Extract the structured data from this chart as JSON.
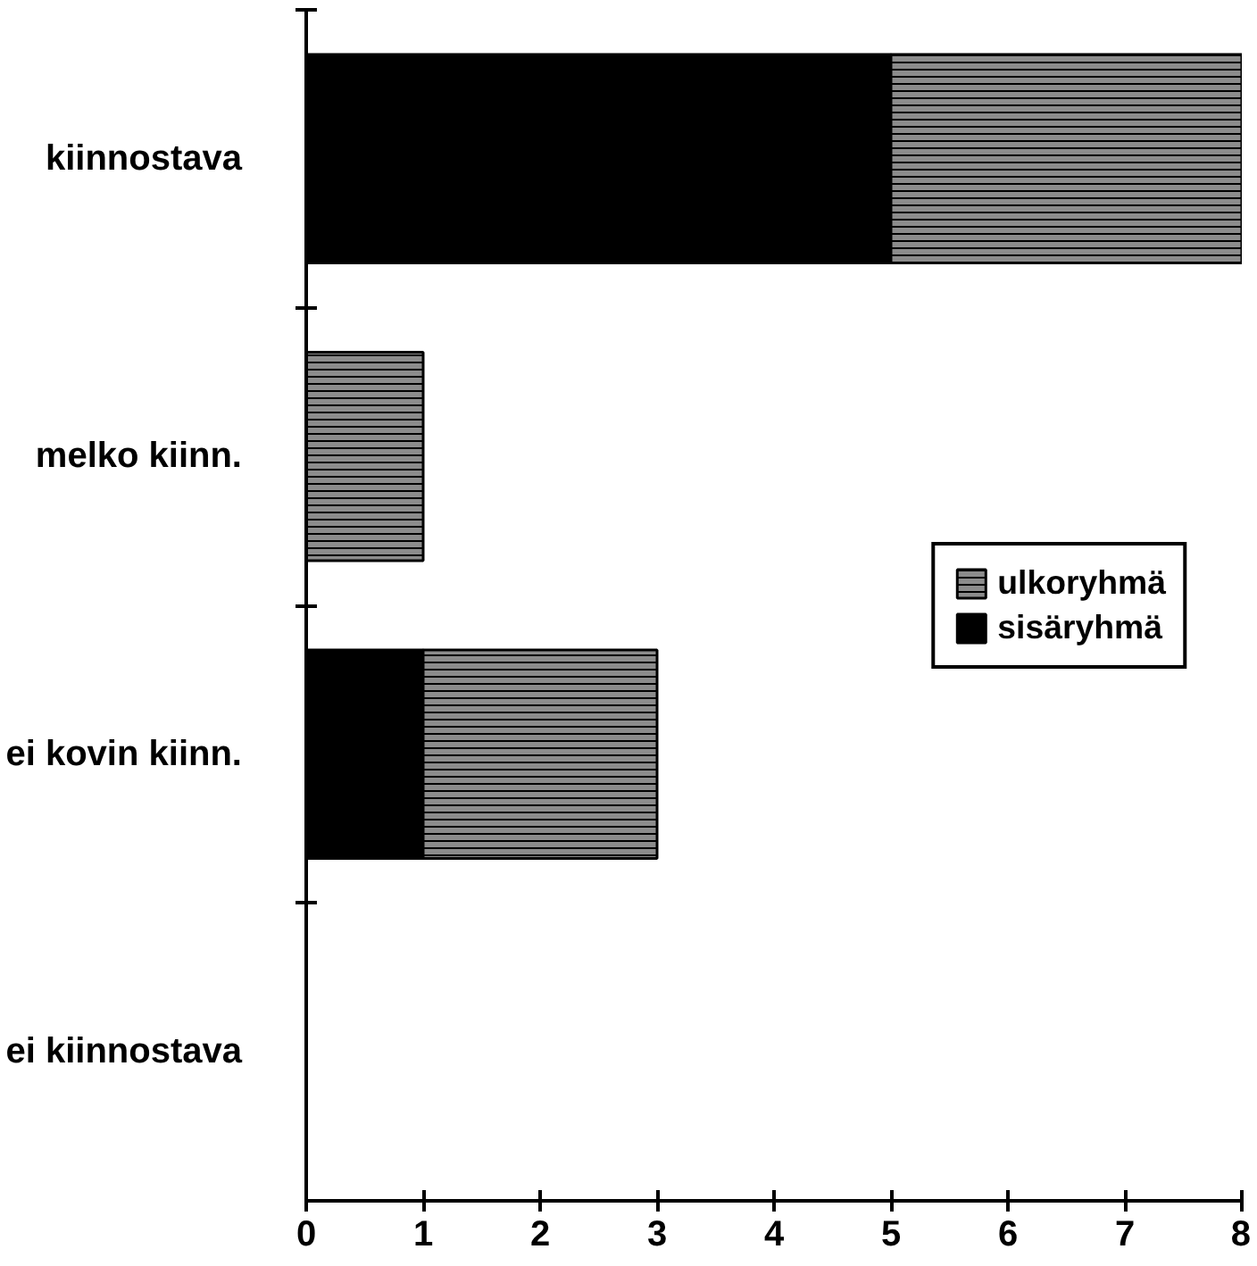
{
  "chart_data": {
    "type": "bar",
    "orientation": "horizontal",
    "stacked": true,
    "categories": [
      "kiinnostava",
      "melko kiinn.",
      "ei kovin kiinn.",
      "ei kiinnostava"
    ],
    "series": [
      {
        "name": "sisäryhmä",
        "color": "#000000",
        "values": [
          5,
          0,
          1,
          0
        ]
      },
      {
        "name": "ulkoryhmä",
        "color": "#8c8c8c",
        "values": [
          3,
          1,
          2,
          0
        ]
      }
    ],
    "xlim": [
      0,
      8
    ],
    "xticks": [
      0,
      1,
      2,
      3,
      4,
      5,
      6,
      7,
      8
    ],
    "grid": false,
    "legend": "right"
  }
}
